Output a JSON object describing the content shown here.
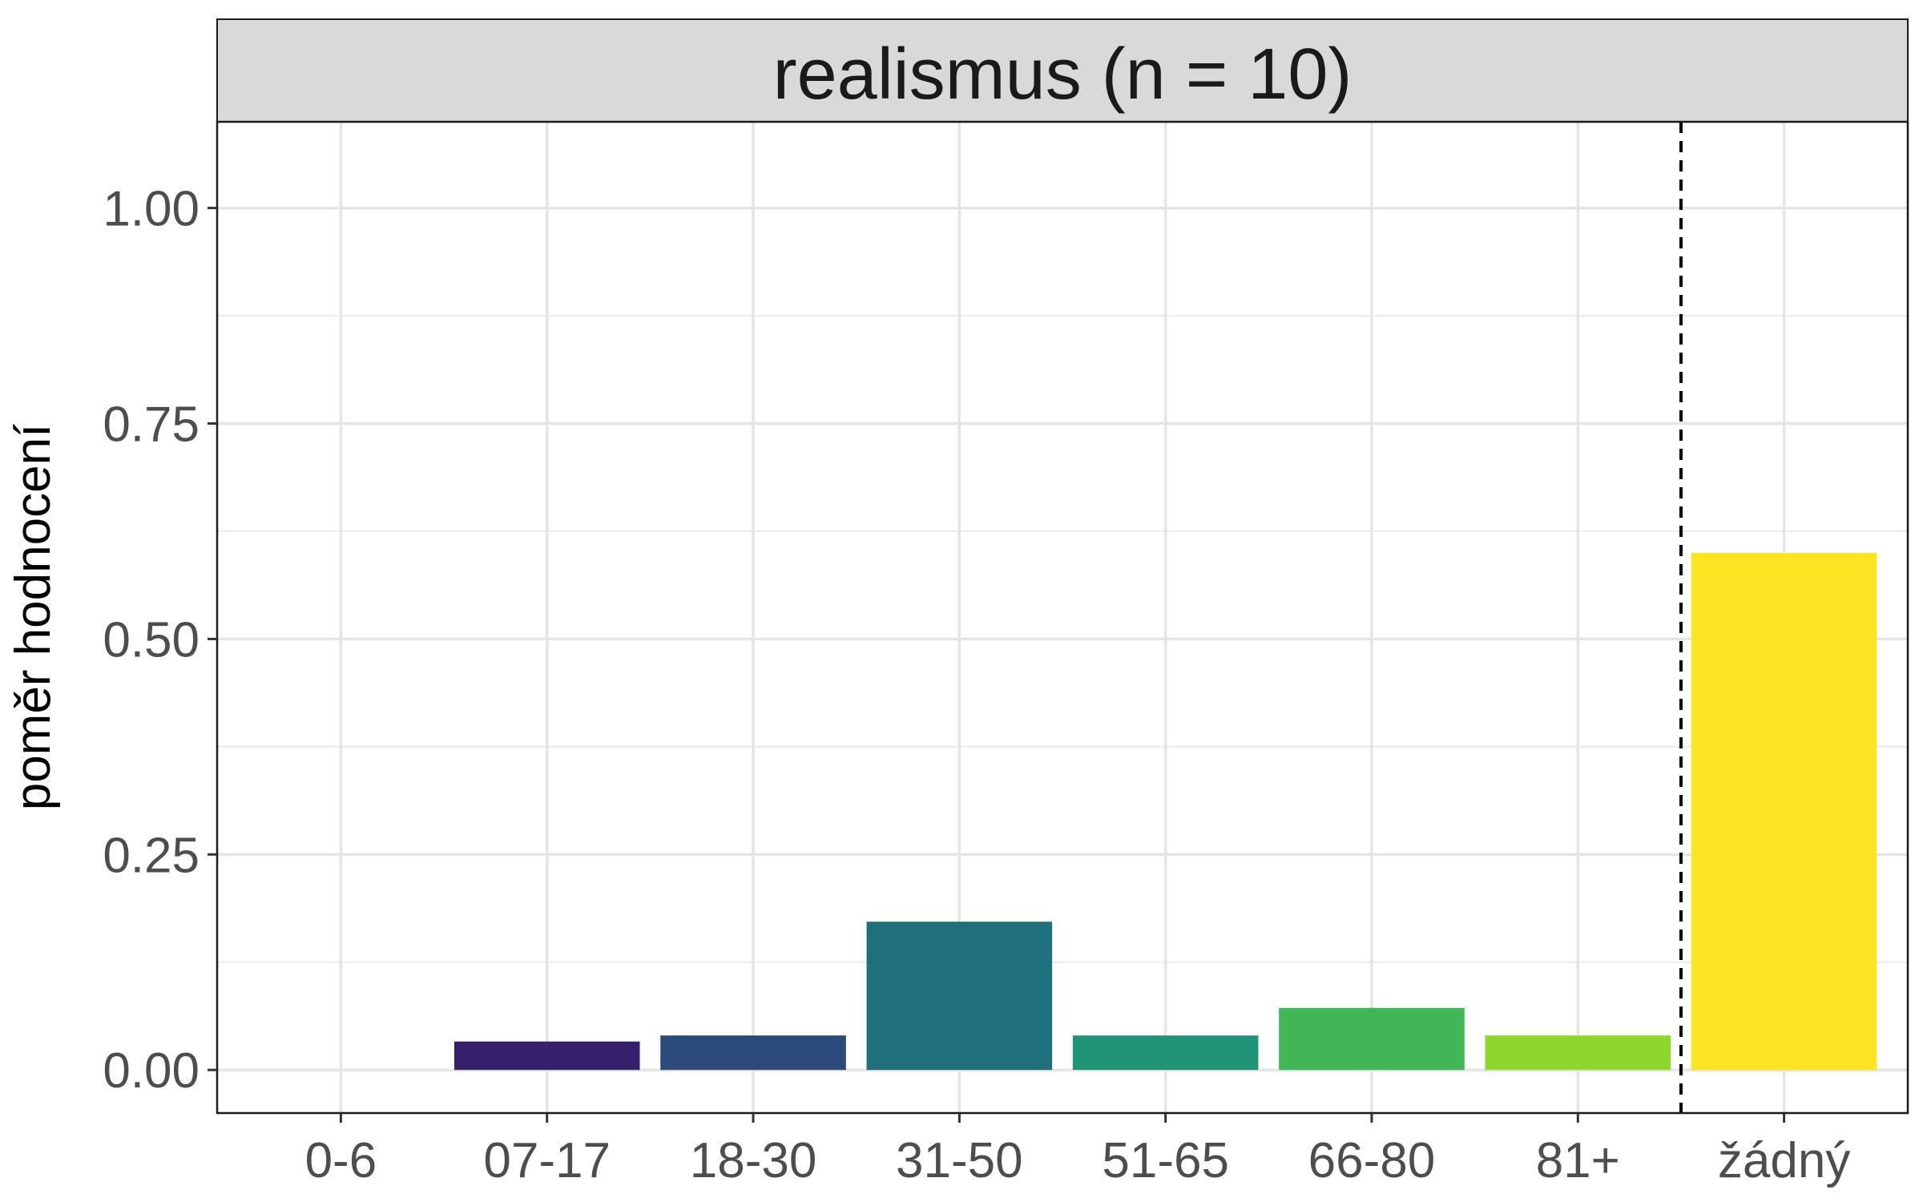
{
  "chart_data": {
    "type": "bar",
    "title": "realismus (n = 10)",
    "xlabel": "",
    "ylabel": "poměr hodnocení",
    "categories": [
      "0-6",
      "07-17",
      "18-30",
      "31-50",
      "51-65",
      "66-80",
      "81+",
      "žádný"
    ],
    "values": [
      0,
      0.033,
      0.04,
      0.172,
      0.04,
      0.072,
      0.04,
      0.6
    ],
    "colors": [
      "#440154",
      "#37206b",
      "#2b4a7a",
      "#226f7c",
      "#219477",
      "#40b656",
      "#8ed62c",
      "#fde523"
    ],
    "ylim": [
      -0.05,
      1.1
    ],
    "yticks": [
      0,
      0.25,
      0.5,
      0.75,
      1.0
    ],
    "ytick_labels": [
      "0.00",
      "0.25",
      "0.50",
      "0.75",
      "1.00"
    ],
    "separator_after_category": "81+",
    "grid": true,
    "legend": "none"
  }
}
